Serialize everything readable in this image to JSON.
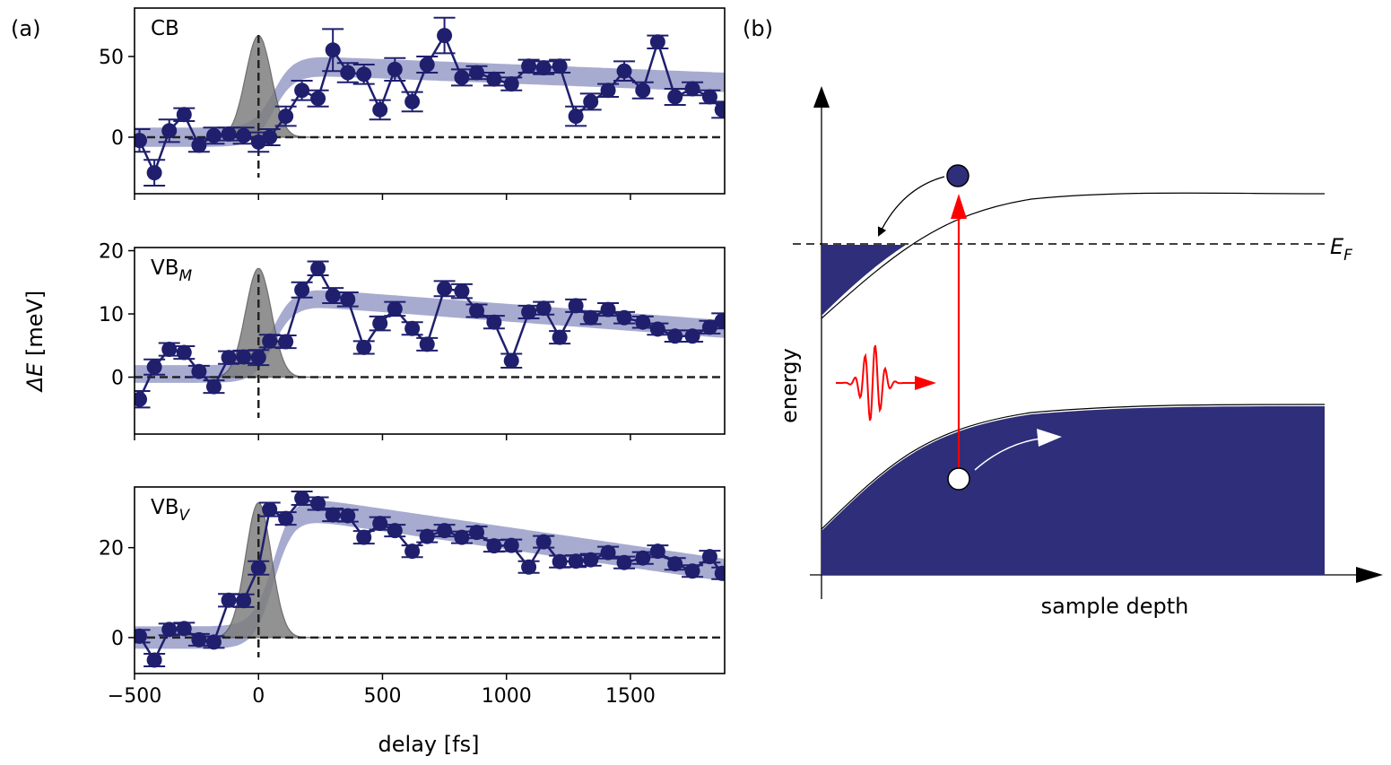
{
  "panel_labels": {
    "a": "(a)",
    "b": "(b)"
  },
  "colors": {
    "series": "#1f1f6e",
    "band": "#8a8fc0",
    "pump": "#7f7f7f",
    "band_fill": "#2e2e7a",
    "photon": "#ff0000"
  },
  "chart_data": [
    {
      "type": "line",
      "label": "CB",
      "label_sub": "",
      "xlim": [
        -500,
        1880
      ],
      "ylim": [
        -35,
        80
      ],
      "yticks": [
        0,
        50
      ],
      "x_ticks": [
        -500,
        0,
        500,
        1000,
        1500
      ],
      "pump_peak": 63,
      "fit": {
        "start": 0,
        "rise": 230,
        "peak": 44,
        "end": 34,
        "halfwidth": 6
      },
      "x": [
        -480,
        -420,
        -360,
        -300,
        -240,
        -180,
        -120,
        -60,
        0,
        45,
        110,
        175,
        240,
        300,
        360,
        425,
        490,
        550,
        620,
        680,
        750,
        820,
        880,
        950,
        1020,
        1090,
        1150,
        1215,
        1280,
        1340,
        1410,
        1475,
        1550,
        1610,
        1680,
        1750,
        1820,
        1870
      ],
      "y": [
        -2,
        -22,
        4,
        14,
        -5,
        1,
        2,
        1,
        -3,
        0,
        13,
        29,
        24,
        54,
        40,
        39,
        17,
        42,
        22,
        45,
        63,
        37,
        40,
        36,
        33,
        44,
        43,
        44,
        13,
        22,
        29,
        41,
        29,
        59,
        25,
        30,
        25,
        17
      ],
      "err": [
        7,
        8,
        7,
        4,
        4,
        5,
        4,
        5,
        6,
        5,
        6,
        6,
        5,
        13,
        6,
        6,
        6,
        7,
        6,
        5,
        11,
        5,
        4,
        4,
        4,
        4,
        4,
        4,
        6,
        5,
        4,
        6,
        5,
        4,
        5,
        4,
        4,
        5
      ]
    },
    {
      "type": "line",
      "label": "VB",
      "label_sub": "M",
      "xlim": [
        -500,
        1880
      ],
      "ylim": [
        -9,
        20.5
      ],
      "yticks": [
        0,
        10,
        20
      ],
      "x_ticks": [
        -500,
        0,
        500,
        1000,
        1500
      ],
      "pump_peak": 17.2,
      "fit": {
        "start": 0.5,
        "rise": 225,
        "peak": 12.5,
        "end": 7.6,
        "halfwidth": 1.4
      },
      "x": [
        -480,
        -420,
        -360,
        -300,
        -240,
        -180,
        -120,
        -60,
        0,
        45,
        110,
        175,
        240,
        300,
        360,
        425,
        490,
        550,
        620,
        680,
        750,
        820,
        880,
        950,
        1020,
        1090,
        1150,
        1215,
        1280,
        1340,
        1410,
        1475,
        1550,
        1610,
        1680,
        1750,
        1820,
        1870
      ],
      "y": [
        -3.5,
        1.6,
        4.4,
        3.9,
        0.9,
        -1.5,
        3.1,
        3.2,
        3.1,
        5.7,
        5.6,
        13.8,
        17.2,
        12.9,
        12.3,
        4.7,
        8.5,
        10.8,
        7.7,
        5.2,
        14.0,
        13.6,
        10.5,
        8.7,
        2.6,
        10.3,
        10.9,
        6.3,
        11.3,
        9.4,
        10.7,
        9.4,
        8.7,
        7.6,
        6.5,
        6.5,
        7.9,
        8.9
      ],
      "err": [
        1.3,
        1.2,
        1.0,
        1.0,
        0.9,
        1.0,
        1.0,
        1.0,
        1.2,
        1.0,
        1.0,
        1.2,
        1.1,
        1.2,
        1.1,
        1.0,
        1.1,
        1.1,
        1.0,
        1.0,
        1.2,
        1.1,
        1.0,
        1.0,
        1.1,
        1.0,
        1.0,
        1.0,
        1.0,
        1.0,
        1.0,
        0.9,
        0.9,
        0.9,
        0.9,
        0.9,
        1.0,
        1.2
      ]
    },
    {
      "type": "line",
      "label": "VB",
      "label_sub": "V",
      "xlim": [
        -500,
        1880
      ],
      "ylim": [
        -8,
        33.5
      ],
      "yticks": [
        0,
        20
      ],
      "x_ticks": [
        -500,
        0,
        500,
        1000,
        1500
      ],
      "pump_peak": 30,
      "fit": {
        "start": 0,
        "rise": 150,
        "peak": 29,
        "end": 15,
        "halfwidth": 2.5
      },
      "x": [
        -480,
        -420,
        -360,
        -300,
        -240,
        -180,
        -120,
        -60,
        0,
        45,
        110,
        175,
        240,
        300,
        360,
        425,
        490,
        550,
        620,
        680,
        750,
        820,
        880,
        950,
        1020,
        1090,
        1150,
        1215,
        1280,
        1340,
        1410,
        1475,
        1550,
        1610,
        1680,
        1750,
        1820,
        1870
      ],
      "y": [
        0.3,
        -5,
        1.8,
        2.0,
        -0.5,
        -1.0,
        8.3,
        8.2,
        15.5,
        28.5,
        26.5,
        31,
        29.8,
        27.3,
        27.1,
        22.3,
        25.4,
        23.8,
        19.2,
        22.5,
        23.8,
        22.3,
        23.4,
        20.4,
        20.5,
        15.7,
        21.3,
        16.9,
        17.0,
        17.3,
        18.9,
        16.7,
        17.7,
        19.2,
        16.4,
        14.8,
        18.0,
        14.3
      ],
      "err": [
        1.4,
        1.4,
        1.3,
        1.3,
        1.3,
        1.3,
        1.4,
        1.4,
        1.5,
        1.5,
        1.4,
        1.5,
        1.4,
        1.4,
        1.3,
        1.4,
        1.4,
        1.3,
        1.3,
        1.3,
        1.3,
        1.3,
        1.3,
        1.3,
        1.3,
        1.3,
        1.3,
        1.3,
        1.3,
        1.3,
        1.3,
        1.3,
        1.3,
        1.3,
        1.3,
        1.3,
        1.3,
        1.3
      ]
    }
  ],
  "axes": {
    "x_label": "delay [fs]",
    "y_label_italic": "ΔE",
    "y_label_unit": " [meV]"
  },
  "diagram": {
    "ylabel": "energy",
    "xlabel": "sample depth",
    "fermi_label": "E",
    "fermi_sub": "F"
  }
}
